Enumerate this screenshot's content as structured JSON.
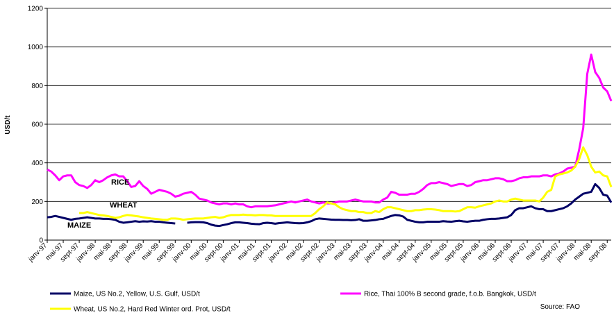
{
  "chart_data": {
    "type": "line",
    "y_label": "USD/t",
    "source": "Source: FAO",
    "annotations": [
      "RICE",
      "WHEAT",
      "MAIZE"
    ],
    "categories": [
      "janv-97",
      null,
      null,
      null,
      "mai-97",
      null,
      null,
      null,
      "sept-97",
      null,
      null,
      null,
      "janv-98",
      null,
      null,
      null,
      "mai-98",
      null,
      null,
      null,
      "sept-98",
      null,
      null,
      null,
      "janv-99",
      null,
      null,
      null,
      "mai-99",
      null,
      null,
      null,
      "sept-99",
      null,
      null,
      null,
      "janv-00",
      null,
      null,
      null,
      "mai-00",
      null,
      null,
      null,
      "sept-00",
      null,
      null,
      null,
      "janv-01",
      null,
      null,
      null,
      "mai-01",
      null,
      null,
      null,
      "sept-01",
      null,
      null,
      null,
      "janv-02",
      null,
      null,
      null,
      "mai-02",
      null,
      null,
      null,
      "sept-02",
      null,
      null,
      null,
      "janv-03",
      null,
      null,
      null,
      "mai-03",
      null,
      null,
      null,
      "sept-03",
      null,
      null,
      null,
      "janv-04",
      null,
      null,
      null,
      "mai-04",
      null,
      null,
      null,
      "sept-04",
      null,
      null,
      null,
      "janv-05",
      null,
      null,
      null,
      "mai-05",
      null,
      null,
      null,
      "sept-05",
      null,
      null,
      null,
      "janv-06",
      null,
      null,
      null,
      "mai-06",
      null,
      null,
      null,
      "sept-06",
      null,
      null,
      null,
      "janv-07",
      null,
      null,
      null,
      "mai-07",
      null,
      null,
      null,
      "sept-07",
      null,
      null,
      null,
      "janv-08",
      null,
      null,
      null,
      "mai-08",
      null,
      null,
      null,
      "sept-08",
      null
    ],
    "series": [
      {
        "name": "Maize, US No.2, Yellow, U.S. Gulf, USD/t",
        "color": "#000066",
        "values": [
          118,
          120,
          125,
          120,
          115,
          110,
          105,
          110,
          112,
          115,
          118,
          115,
          112,
          112,
          110,
          110,
          108,
          105,
          95,
          90,
          92,
          95,
          98,
          95,
          97,
          96,
          98,
          95,
          95,
          92,
          90,
          88,
          86,
          null,
          null,
          90,
          92,
          93,
          93,
          92,
          88,
          80,
          75,
          73,
          78,
          82,
          88,
          92,
          92,
          90,
          88,
          85,
          83,
          82,
          88,
          90,
          88,
          85,
          88,
          90,
          92,
          90,
          88,
          87,
          88,
          92,
          98,
          108,
          112,
          110,
          108,
          106,
          105,
          105,
          104,
          104,
          103,
          104,
          108,
          100,
          100,
          102,
          104,
          108,
          110,
          118,
          125,
          130,
          128,
          122,
          105,
          100,
          95,
          92,
          92,
          95,
          95,
          95,
          95,
          98,
          96,
          95,
          98,
          100,
          97,
          95,
          98,
          100,
          100,
          105,
          108,
          110,
          110,
          112,
          115,
          118,
          130,
          155,
          165,
          165,
          170,
          175,
          165,
          160,
          160,
          150,
          150,
          155,
          160,
          165,
          175,
          190,
          210,
          225,
          240,
          245,
          250,
          290,
          270,
          235,
          230,
          195
        ]
      },
      {
        "name": "Rice, Thai 100% B second grade, f.o.b. Bangkok, USD/t",
        "color": "#ff00ff",
        "values": [
          365,
          355,
          335,
          310,
          330,
          335,
          335,
          300,
          285,
          280,
          270,
          285,
          310,
          300,
          310,
          325,
          335,
          340,
          330,
          330,
          305,
          275,
          280,
          305,
          280,
          265,
          240,
          250,
          260,
          255,
          250,
          240,
          225,
          230,
          240,
          245,
          250,
          235,
          215,
          210,
          205,
          195,
          190,
          185,
          190,
          190,
          185,
          190,
          185,
          185,
          175,
          170,
          175,
          175,
          175,
          175,
          178,
          180,
          185,
          190,
          195,
          200,
          195,
          200,
          205,
          210,
          200,
          195,
          190,
          195,
          190,
          190,
          195,
          200,
          200,
          200,
          205,
          210,
          205,
          200,
          200,
          200,
          195,
          195,
          210,
          220,
          250,
          245,
          235,
          235,
          235,
          240,
          240,
          250,
          265,
          285,
          295,
          295,
          300,
          295,
          290,
          280,
          285,
          290,
          290,
          280,
          285,
          300,
          305,
          310,
          310,
          315,
          320,
          320,
          315,
          305,
          305,
          310,
          320,
          325,
          325,
          330,
          330,
          330,
          335,
          335,
          330,
          340,
          345,
          355,
          370,
          375,
          380,
          470,
          580,
          860,
          960,
          870,
          840,
          790,
          770,
          720
        ]
      },
      {
        "name": "Wheat, US No.2, Hard Red Winter ord. Prot, USD/t",
        "color": "#ffff00",
        "values": [
          null,
          null,
          null,
          null,
          null,
          null,
          null,
          null,
          140,
          140,
          145,
          140,
          135,
          130,
          128,
          125,
          120,
          115,
          118,
          125,
          130,
          128,
          125,
          122,
          118,
          115,
          112,
          110,
          108,
          105,
          105,
          112,
          112,
          110,
          105,
          108,
          110,
          112,
          112,
          112,
          115,
          118,
          120,
          115,
          118,
          125,
          130,
          130,
          130,
          132,
          130,
          130,
          128,
          130,
          130,
          128,
          128,
          125,
          125,
          125,
          125,
          125,
          125,
          125,
          125,
          125,
          125,
          140,
          160,
          175,
          195,
          190,
          185,
          170,
          160,
          155,
          150,
          150,
          145,
          145,
          140,
          140,
          150,
          145,
          160,
          170,
          170,
          165,
          160,
          155,
          150,
          150,
          155,
          155,
          158,
          160,
          160,
          158,
          155,
          150,
          150,
          150,
          148,
          150,
          160,
          170,
          170,
          168,
          175,
          180,
          185,
          190,
          200,
          205,
          200,
          200,
          210,
          215,
          210,
          205,
          205,
          205,
          205,
          200,
          220,
          250,
          260,
          330,
          340,
          345,
          350,
          360,
          380,
          420,
          480,
          440,
          380,
          350,
          355,
          335,
          330,
          275
        ]
      }
    ],
    "ylim": [
      0,
      1200
    ],
    "yticks": [
      0,
      200,
      400,
      600,
      800,
      1000,
      1200
    ],
    "grid": true
  }
}
